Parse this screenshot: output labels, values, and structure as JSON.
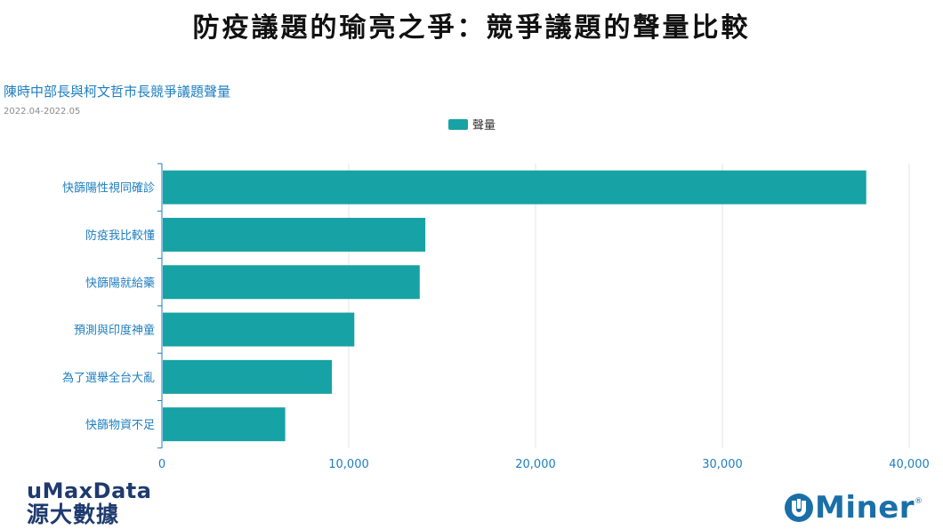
{
  "page": {
    "main_title": "防疫議題的瑜亮之爭：競爭議題的聲量比較"
  },
  "brands": {
    "left_top": "uMaxData",
    "left_bottom": "源大數據",
    "right_text": "Miner",
    "right_reg": "®",
    "color_navy": "#1f3b6e",
    "color_blue": "#1a6fa8"
  },
  "chart_data": {
    "type": "bar",
    "orientation": "horizontal",
    "title": "陳時中部長與柯文哲市長競爭議題聲量",
    "subtitle": "2022.04-2022.05",
    "categories": [
      "快篩陽性視同確診",
      "防疫我比較懂",
      "快篩陽就給藥",
      "預測與印度神童",
      "為了選舉全台大亂",
      "快篩物資不足"
    ],
    "series": [
      {
        "name": "聲量",
        "values": [
          37700,
          14100,
          13800,
          10300,
          9100,
          6600
        ],
        "color": "#17a2a5"
      }
    ],
    "xlim": [
      0,
      40000
    ],
    "x_ticks": [
      0,
      10000,
      20000,
      30000,
      40000
    ],
    "x_tick_labels": [
      "0",
      "10,000",
      "20,000",
      "30,000",
      "40,000"
    ],
    "grid": true,
    "legend": "top-center",
    "label_color": "#1f7fc0"
  }
}
